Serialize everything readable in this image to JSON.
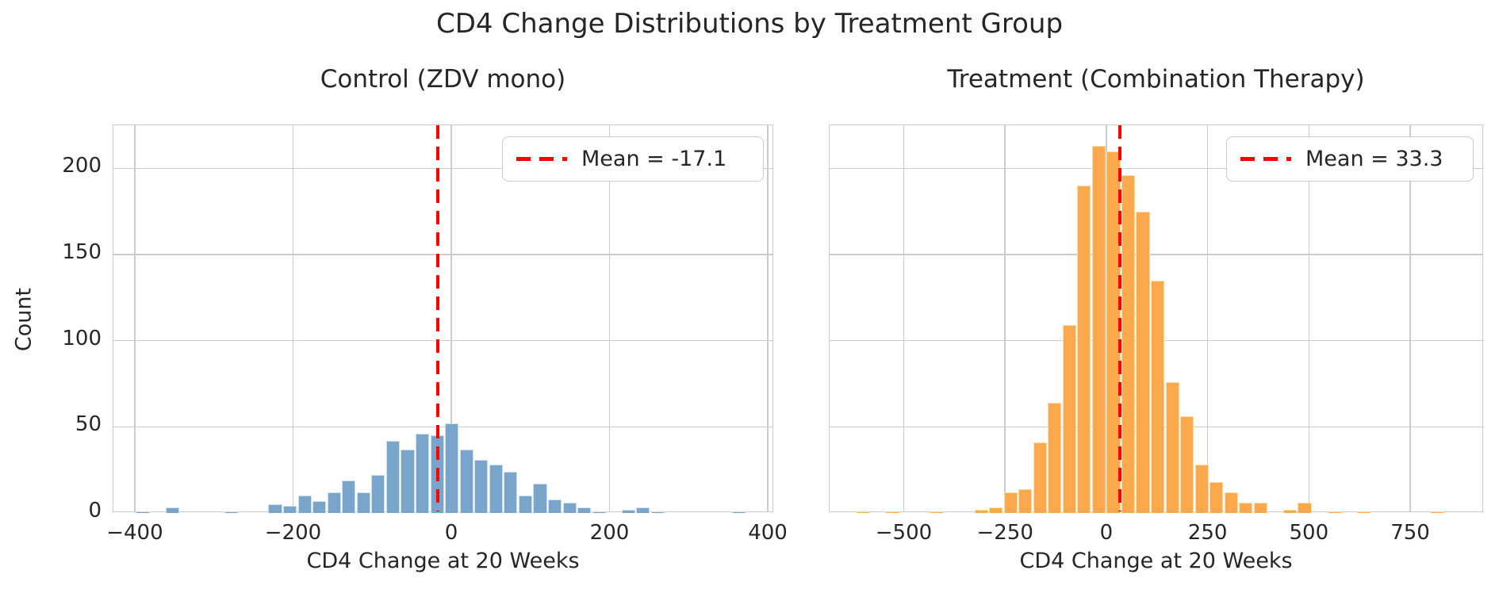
{
  "figure": {
    "title": "CD4 Change Distributions by Treatment Group",
    "background": "#ffffff",
    "text_color": "#262626",
    "grid_color": "#cccccc",
    "mean_line_color": "#ff0000"
  },
  "chart_data": [
    {
      "type": "bar",
      "subtype": "histogram",
      "title": "Control (ZDV mono)",
      "xlabel": "CD4 Change at 20 Weeks",
      "ylabel": "Count",
      "legend": "Mean = -17.1",
      "legend_position": "upper right",
      "grid": true,
      "mean": -17.1,
      "bar_color": "#79a5cb",
      "bar_edge_color": "#cde0ee",
      "xlim": [
        -427,
        408
      ],
      "ylim": [
        0,
        225
      ],
      "xticks": [
        -400,
        -200,
        0,
        200,
        400
      ],
      "yticks": [
        0,
        50,
        100,
        150,
        200
      ],
      "bin_width": 18.6,
      "bins": [
        [
          -399.0,
          1
        ],
        [
          -361.8,
          3
        ],
        [
          -287.4,
          1
        ],
        [
          -231.6,
          5
        ],
        [
          -213.0,
          4
        ],
        [
          -194.4,
          10
        ],
        [
          -175.8,
          7
        ],
        [
          -157.2,
          12
        ],
        [
          -138.6,
          19
        ],
        [
          -120.0,
          12
        ],
        [
          -101.4,
          22
        ],
        [
          -82.8,
          42
        ],
        [
          -64.2,
          37
        ],
        [
          -45.6,
          46
        ],
        [
          -27.0,
          45
        ],
        [
          -8.4,
          52
        ],
        [
          10.2,
          37
        ],
        [
          28.8,
          31
        ],
        [
          47.4,
          28
        ],
        [
          66.0,
          24
        ],
        [
          84.6,
          10
        ],
        [
          103.2,
          17
        ],
        [
          121.8,
          8
        ],
        [
          140.4,
          6
        ],
        [
          159.0,
          3
        ],
        [
          177.6,
          1
        ],
        [
          214.8,
          2
        ],
        [
          233.4,
          3
        ],
        [
          252.0,
          1
        ],
        [
          354.0,
          1
        ]
      ]
    },
    {
      "type": "bar",
      "subtype": "histogram",
      "title": "Treatment (Combination Therapy)",
      "xlabel": "CD4 Change at 20 Weeks",
      "ylabel": "Count",
      "legend": "Mean = 33.3",
      "legend_position": "upper right",
      "grid": true,
      "mean": 33.3,
      "bar_color": "#fba94c",
      "bar_edge_color": "#fddcab",
      "xlim": [
        -683,
        932
      ],
      "ylim": [
        0,
        225
      ],
      "xticks": [
        -500,
        -250,
        0,
        250,
        500,
        750
      ],
      "yticks": [
        0,
        50,
        100,
        150,
        200
      ],
      "bin_width": 36.3,
      "bins": [
        [
          -617.1,
          1
        ],
        [
          -544.5,
          1
        ],
        [
          -435.6,
          1
        ],
        [
          -326.7,
          2
        ],
        [
          -290.4,
          3
        ],
        [
          -254.1,
          12
        ],
        [
          -217.8,
          14
        ],
        [
          -181.5,
          41
        ],
        [
          -145.2,
          64
        ],
        [
          -108.9,
          109
        ],
        [
          -72.6,
          190
        ],
        [
          -36.3,
          213
        ],
        [
          0.0,
          210
        ],
        [
          36.3,
          196
        ],
        [
          72.6,
          175
        ],
        [
          108.9,
          135
        ],
        [
          145.2,
          76
        ],
        [
          181.5,
          56
        ],
        [
          217.8,
          28
        ],
        [
          254.1,
          18
        ],
        [
          290.4,
          12
        ],
        [
          326.7,
          6
        ],
        [
          363.0,
          6
        ],
        [
          435.6,
          2
        ],
        [
          471.9,
          6
        ],
        [
          544.5,
          1
        ],
        [
          617.1,
          1
        ],
        [
          798.6,
          1
        ]
      ]
    }
  ]
}
